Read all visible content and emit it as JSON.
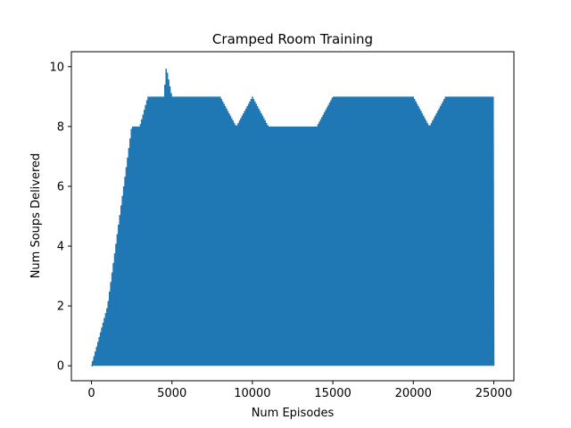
{
  "chart_data": {
    "type": "line",
    "title": "Cramped Room Training",
    "xlabel": "Num Episodes",
    "ylabel": "Num Soups Delivered",
    "xlim": [
      -1250,
      26250
    ],
    "ylim": [
      -0.5,
      10.5
    ],
    "x_ticks": [
      0,
      5000,
      10000,
      15000,
      20000,
      25000
    ],
    "y_ticks": [
      0,
      2,
      4,
      6,
      8,
      10
    ],
    "x_tick_labels": [
      "0",
      "5000",
      "10000",
      "15000",
      "20000",
      "25000"
    ],
    "y_tick_labels": [
      "0",
      "2",
      "4",
      "6",
      "8",
      "10"
    ],
    "grid": false,
    "legend": "none",
    "color": "#1f77b4",
    "series": [
      {
        "x": [
          0,
          1000,
          1500,
          2000,
          2500,
          3000,
          3500,
          4000,
          4500,
          4650,
          5000,
          6000,
          7000,
          8000,
          9000,
          10000,
          11000,
          12000,
          13000,
          14000,
          15000,
          16000,
          17000,
          18000,
          19000,
          20000,
          21000,
          22000,
          23000,
          24000,
          25000
        ],
        "y_max": [
          0,
          2,
          4,
          6,
          8,
          8,
          9,
          9,
          9,
          10,
          9,
          9,
          9,
          9,
          8,
          9,
          8,
          8,
          8,
          8,
          9,
          9,
          9,
          9,
          9,
          9,
          8,
          9,
          9,
          9,
          9
        ],
        "y_min": [
          0,
          0,
          0,
          0,
          0,
          0,
          0,
          0,
          0,
          0,
          0,
          0,
          0,
          0,
          0,
          0,
          0,
          0,
          0,
          0,
          0,
          0,
          0,
          0,
          0,
          0,
          0,
          0,
          0,
          0,
          0
        ]
      }
    ]
  }
}
